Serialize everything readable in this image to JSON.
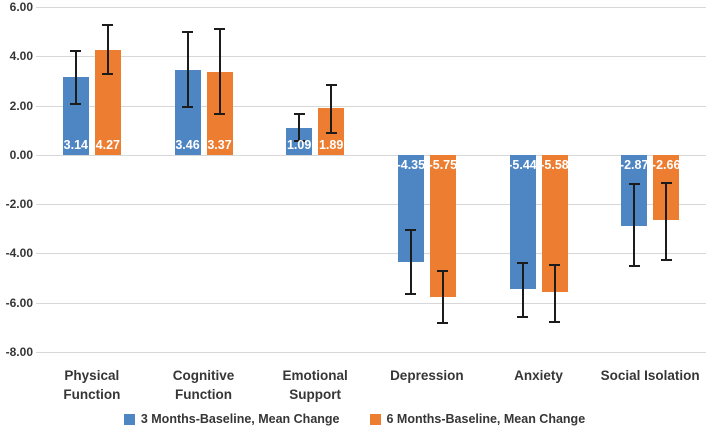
{
  "chart_data": {
    "type": "bar",
    "title": "",
    "xlabel": "",
    "ylabel": "",
    "categories": [
      "Physical\nFunction",
      "Cognitive\nFunction",
      "Emotional\nSupport",
      "Depression",
      "Anxiety",
      "Social Isolation"
    ],
    "y_ticks": [
      "6.00",
      "4.00",
      "2.00",
      "0.00",
      "-2.00",
      "-4.00",
      "-6.00",
      "-8.00"
    ],
    "ylim": [
      -8,
      6
    ],
    "grid": true,
    "legend_position": "bottom",
    "series": [
      {
        "name": "3 Months-Baseline, Mean Change",
        "color": "#4e86c4",
        "values": [
          3.14,
          3.46,
          1.09,
          -4.35,
          -5.44,
          -2.87
        ],
        "labels": [
          "3.14",
          "3.46",
          "1.09",
          "-4.35",
          "-5.44",
          "-2.87"
        ],
        "error_low": [
          2.05,
          1.95,
          0.55,
          -5.64,
          -6.58,
          -4.52
        ],
        "error_high": [
          4.22,
          5.0,
          1.65,
          -3.05,
          -4.4,
          -1.2
        ]
      },
      {
        "name": "6 Months-Baseline, Mean Change",
        "color": "#ed7d31",
        "values": [
          4.27,
          3.37,
          1.89,
          -5.75,
          -5.58,
          -2.66
        ],
        "labels": [
          "4.27",
          "3.37",
          "1.89",
          "-5.75",
          "-5.58",
          "-2.66"
        ],
        "error_low": [
          3.28,
          1.65,
          0.9,
          -6.82,
          -6.78,
          -4.25
        ],
        "error_high": [
          5.27,
          5.1,
          2.85,
          -4.7,
          -4.45,
          -1.16
        ]
      }
    ],
    "colors": {
      "grid": "#d8d8d8",
      "error_bar": "#1c1c1c",
      "axis_text": "#363636",
      "data_label": "#ffffff",
      "background": "#ffffff"
    }
  }
}
